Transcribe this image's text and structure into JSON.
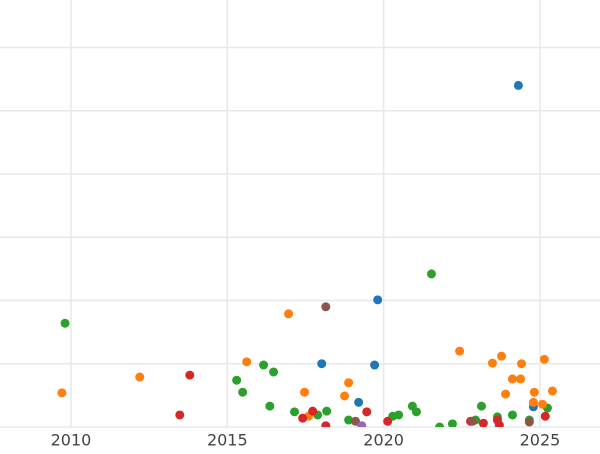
{
  "chart_data": {
    "type": "scatter",
    "xlim": [
      2007.73,
      2026.92
    ],
    "ylim": [
      0,
      6.75
    ],
    "xticks": [
      2010,
      2015,
      2020,
      2025
    ],
    "yticks": [
      0,
      1,
      2,
      3,
      4,
      5,
      6
    ],
    "grid": true,
    "series": [
      {
        "color": "#1f77b4",
        "x": [
          2024.31,
          2019.81,
          2018.02,
          2019.71,
          2019.2,
          2024.79
        ],
        "values": [
          5.4,
          2.01,
          1.0,
          0.98,
          0.39,
          0.32
        ]
      },
      {
        "color": "#2ca02c",
        "x": [
          2009.81,
          2021.53,
          2015.3,
          2015.49,
          2016.16,
          2016.48,
          2016.36,
          2017.15,
          2017.89,
          2018.18,
          2018.88,
          2020.29,
          2020.48,
          2020.92,
          2021.05,
          2021.79,
          2022.2,
          2022.94,
          2023.13,
          2023.64,
          2024.12,
          2024.66,
          2025.24
        ],
        "values": [
          1.64,
          2.42,
          0.74,
          0.55,
          0.98,
          0.87,
          0.33,
          0.24,
          0.19,
          0.25,
          0.11,
          0.17,
          0.19,
          0.33,
          0.24,
          0,
          0.05,
          0.11,
          0.33,
          0.16,
          0.19,
          0.11,
          0.3
        ]
      },
      {
        "color": "#ff7f0e",
        "x": [
          2009.71,
          2012.2,
          2015.62,
          2016.96,
          2017.47,
          2018.75,
          2018.88,
          2022.43,
          2023.48,
          2023.77,
          2023.9,
          2024.12,
          2024.38,
          2024.41,
          2024.82,
          2024.79,
          2025.14,
          2025.4,
          2025.08,
          2017.6
        ],
        "values": [
          0.54,
          0.79,
          1.03,
          1.79,
          0.55,
          0.49,
          0.7,
          1.2,
          1.01,
          1.12,
          0.52,
          0.76,
          0.76,
          1.0,
          0.55,
          0.39,
          1.07,
          0.57,
          0.36,
          0.17
        ]
      },
      {
        "color": "#d62728",
        "x": [
          2013.48,
          2013.8,
          2017.41,
          2017.73,
          2018.15,
          2019.46,
          2020.13,
          2023.19,
          2023.64,
          2023.7,
          2025.17,
          2022.78
        ],
        "values": [
          0.19,
          0.82,
          0.14,
          0.25,
          0.02,
          0.24,
          0.09,
          0.06,
          0.11,
          0.03,
          0.17,
          0.09
        ]
      },
      {
        "color": "#8c564b",
        "x": [
          2018.15,
          2019.1,
          2022.84,
          2024.66
        ],
        "values": [
          1.9,
          0.09,
          0.09,
          0.08
        ]
      },
      {
        "color": "#9467bd",
        "x": [
          2019.3
        ],
        "values": [
          0.02
        ]
      }
    ]
  }
}
